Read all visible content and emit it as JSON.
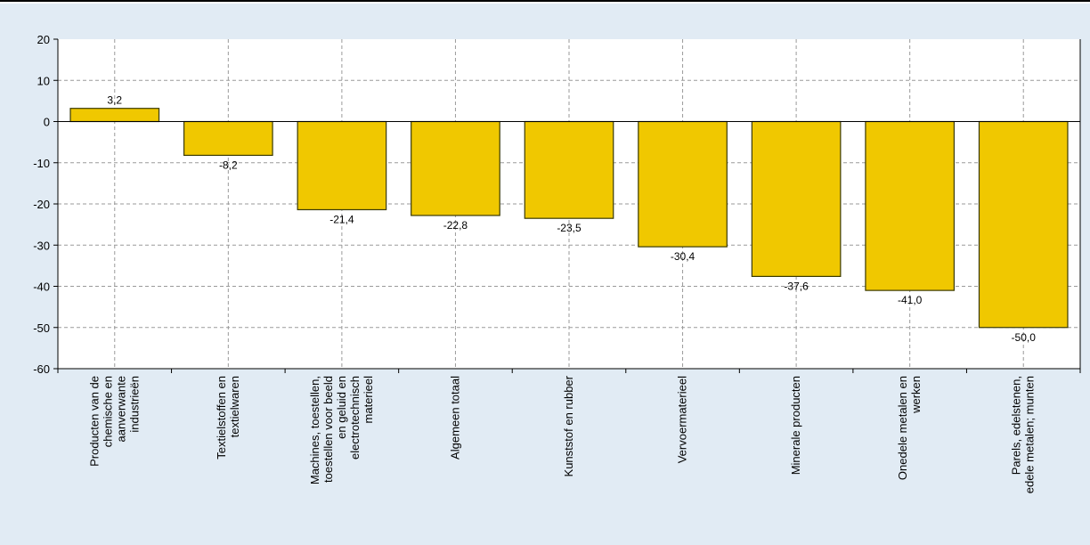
{
  "chart_data": {
    "type": "bar",
    "categories": [
      [
        "Producten van de",
        "chemische en",
        "aanverwante",
        "industrieën"
      ],
      [
        "Textielstoffen en",
        "textielwaren"
      ],
      [
        "Machines, toestellen,",
        "toestellen voor beeld",
        "en geluid en",
        "electrotechnisch",
        "materieel"
      ],
      [
        "Algemeen totaal"
      ],
      [
        "Kunststof en rubber"
      ],
      [
        "Vervoermaterieel"
      ],
      [
        "Minerale producten"
      ],
      [
        "Onedele metalen en",
        "werken"
      ],
      [
        "Parels, edelstenen,",
        "edele metalen; munten"
      ]
    ],
    "values": [
      3.2,
      -8.2,
      -21.4,
      -22.8,
      -23.5,
      -30.4,
      -37.6,
      -41.0,
      -50.0
    ],
    "value_labels": [
      "3,2",
      "-8,2",
      "-21,4",
      "-22,8",
      "-23,5",
      "-30,4",
      "-37,6",
      "-41,0",
      "-50,0"
    ],
    "ylim": [
      -60,
      20
    ],
    "yticks": [
      20,
      10,
      0,
      -10,
      -20,
      -30,
      -40,
      -50,
      -60
    ],
    "grid": true,
    "colors": {
      "background": "#e1ebf4",
      "plot_background": "#ffffff",
      "bar_fill": "#f0c800",
      "bar_stroke": "#3a3a00",
      "grid": "#9a9a9a"
    }
  }
}
